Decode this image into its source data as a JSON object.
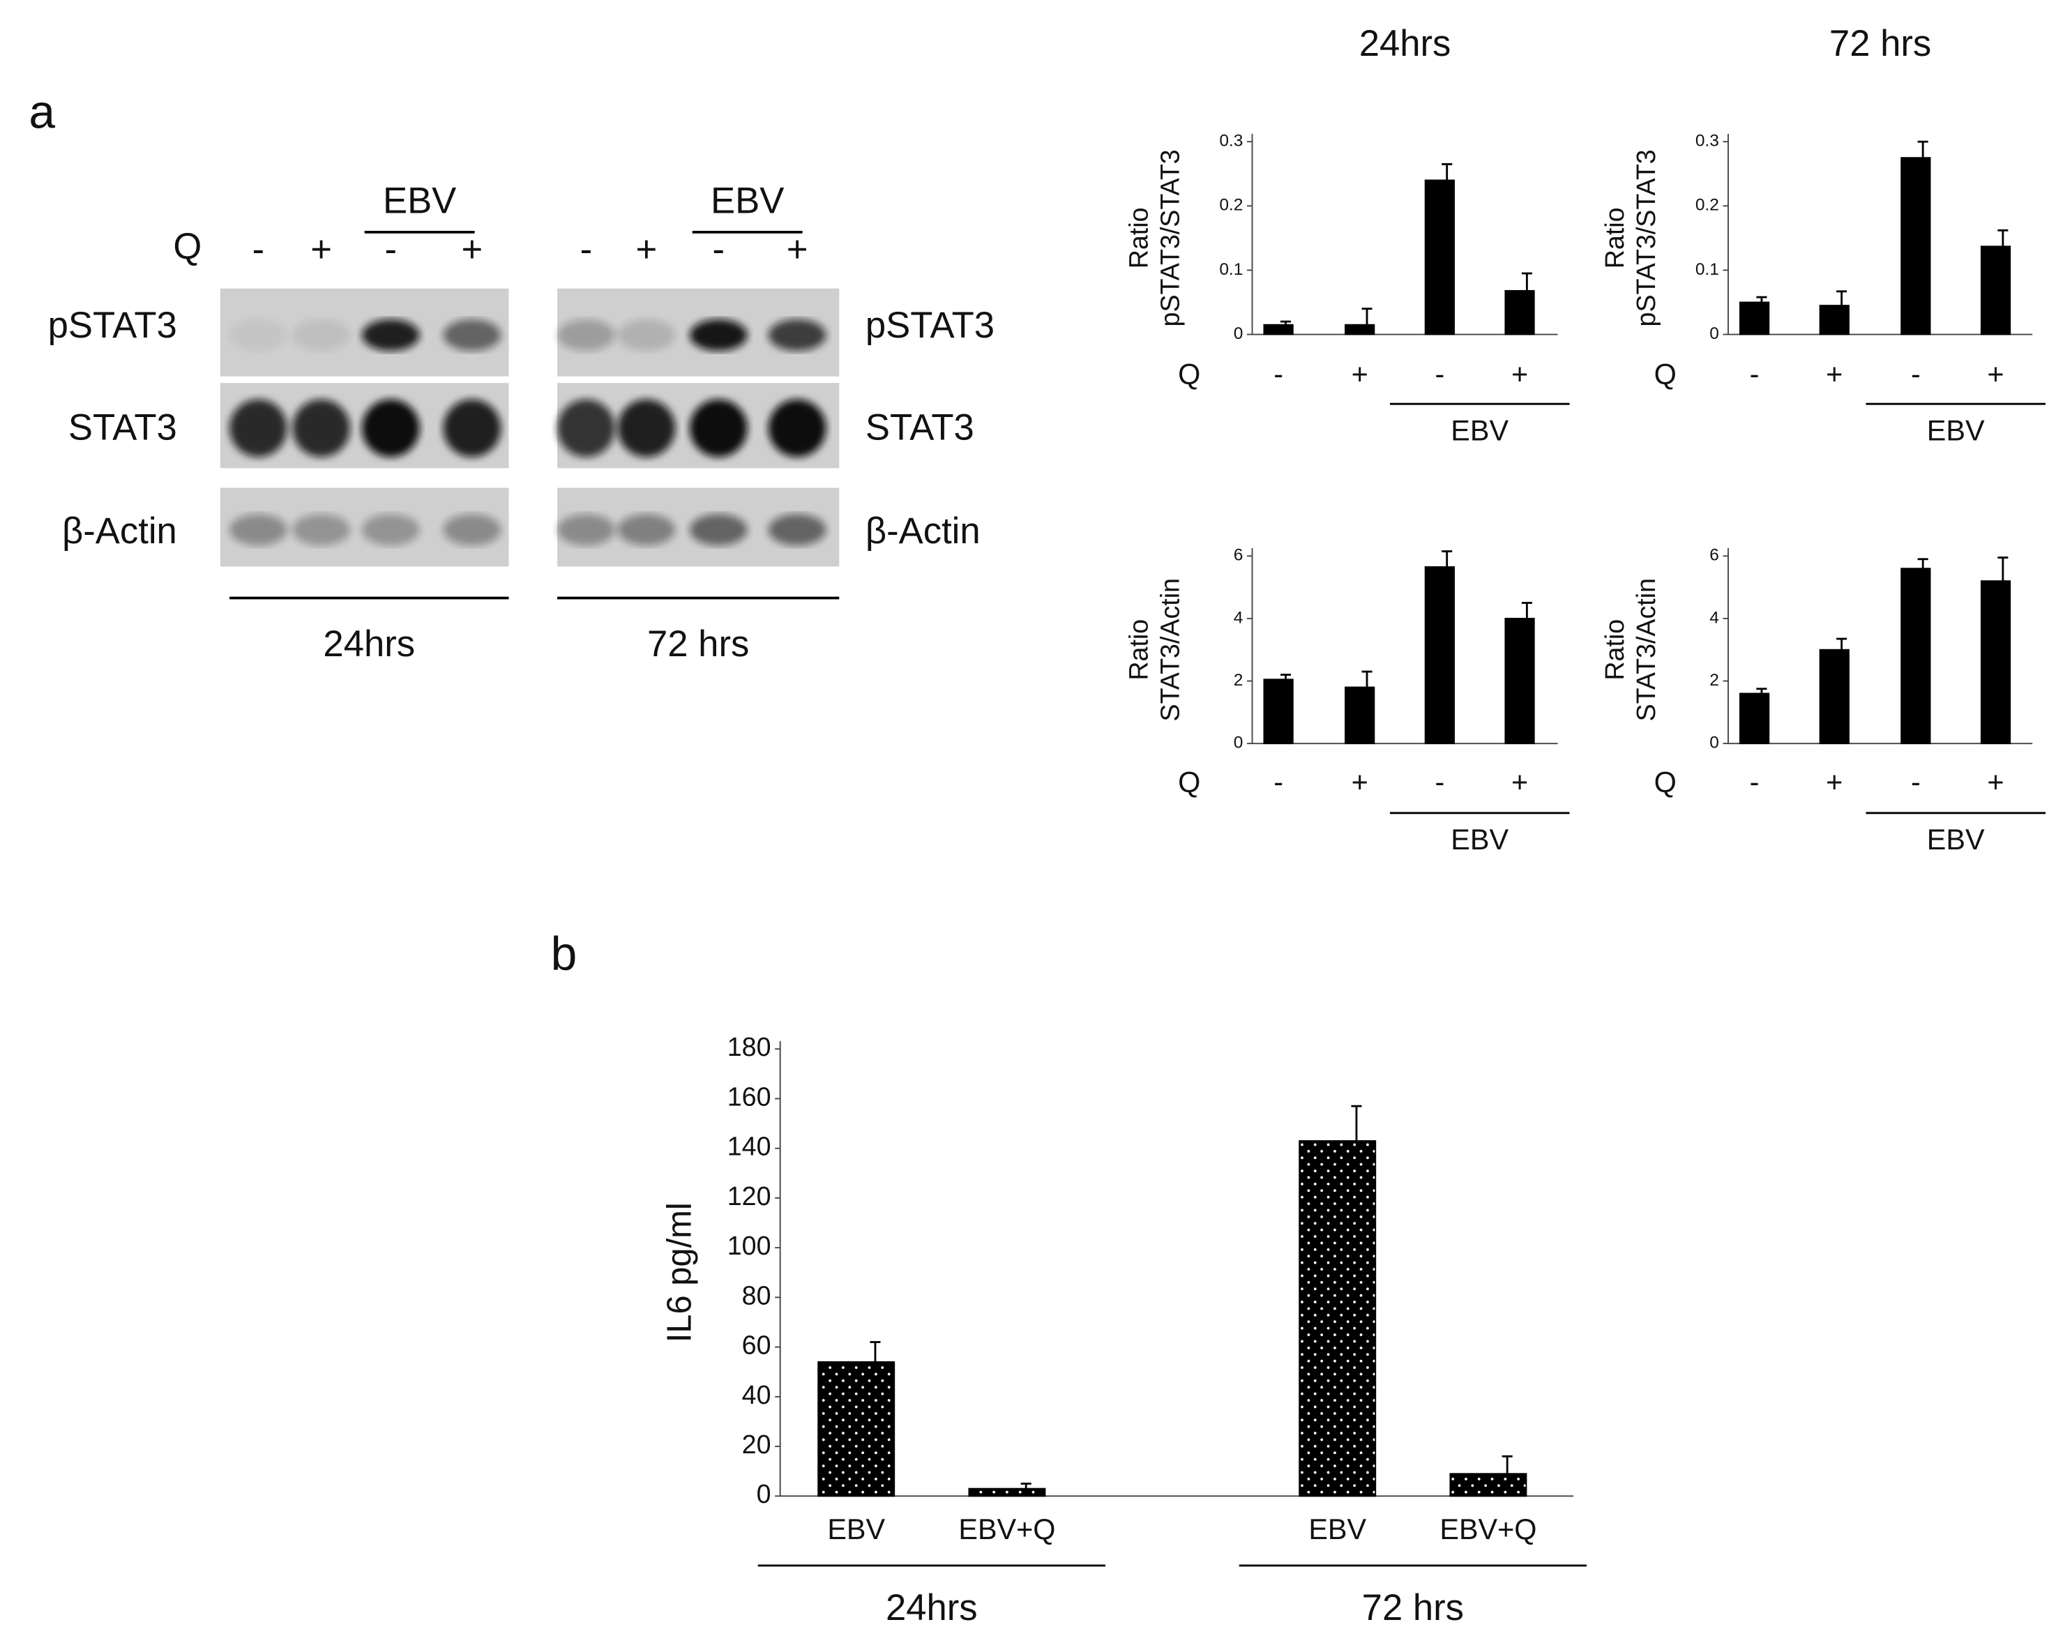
{
  "panel_a": {
    "panel_label": "a",
    "blot": {
      "row_label": "Q",
      "treatments": [
        "-",
        "+",
        "-",
        "+"
      ],
      "group_label": "EBV",
      "bands": [
        "pSTAT3",
        "STAT3",
        "β-Actin"
      ],
      "timepoints": [
        "24hrs",
        "72 hrs"
      ]
    }
  },
  "panel_b": {
    "panel_label": "b"
  },
  "chart_data": [
    {
      "type": "bar",
      "title": "24hrs",
      "ylabel": [
        "Ratio",
        "pSTAT3/STAT3"
      ],
      "row_label": "Q",
      "groups": [
        {
          "label": null,
          "categories": [
            "-",
            "+"
          ]
        },
        {
          "label": "EBV",
          "categories": [
            "-",
            "+"
          ]
        }
      ],
      "values": [
        0.015,
        0.015,
        0.24,
        0.068
      ],
      "errors": [
        0.005,
        0.025,
        0.025,
        0.027
      ],
      "color": "#000000",
      "ylim": [
        0,
        0.3
      ],
      "yticks": [
        0,
        0.1,
        0.2,
        0.3
      ],
      "grid": false
    },
    {
      "type": "bar",
      "title": "72 hrs",
      "ylabel": [
        "Ratio",
        "pSTAT3/STAT3"
      ],
      "row_label": "Q",
      "groups": [
        {
          "label": null,
          "categories": [
            "-",
            "+"
          ]
        },
        {
          "label": "EBV",
          "categories": [
            "-",
            "+"
          ]
        }
      ],
      "values": [
        0.05,
        0.045,
        0.275,
        0.137
      ],
      "errors": [
        0.008,
        0.022,
        0.025,
        0.025
      ],
      "color": "#000000",
      "ylim": [
        0,
        0.3
      ],
      "yticks": [
        0,
        0.1,
        0.2,
        0.3
      ],
      "grid": false
    },
    {
      "type": "bar",
      "ylabel": [
        "Ratio",
        "STAT3/Actin"
      ],
      "row_label": "Q",
      "groups": [
        {
          "label": null,
          "categories": [
            "-",
            "+"
          ]
        },
        {
          "label": "EBV",
          "categories": [
            "-",
            "+"
          ]
        }
      ],
      "values": [
        2.05,
        1.8,
        5.65,
        4.0
      ],
      "errors": [
        0.15,
        0.5,
        0.5,
        0.5
      ],
      "color": "#000000",
      "ylim": [
        0,
        6
      ],
      "yticks": [
        0,
        2,
        4,
        6
      ],
      "grid": false
    },
    {
      "type": "bar",
      "ylabel": [
        "Ratio",
        "STAT3/Actin"
      ],
      "row_label": "Q",
      "groups": [
        {
          "label": null,
          "categories": [
            "-",
            "+"
          ]
        },
        {
          "label": "EBV",
          "categories": [
            "-",
            "+"
          ]
        }
      ],
      "values": [
        1.6,
        3.0,
        5.6,
        5.2
      ],
      "errors": [
        0.15,
        0.35,
        0.3,
        0.75
      ],
      "color": "#000000",
      "ylim": [
        0,
        6
      ],
      "yticks": [
        0,
        2,
        4,
        6
      ],
      "grid": false
    },
    {
      "type": "bar",
      "ylabel": [
        "IL6 pg/ml"
      ],
      "groups": [
        {
          "label": "24hrs",
          "categories": [
            "EBV",
            "EBV+Q"
          ]
        },
        {
          "label": "72 hrs",
          "categories": [
            "EBV",
            "EBV+Q"
          ]
        }
      ],
      "values": [
        54,
        3,
        143,
        9
      ],
      "errors": [
        8,
        2,
        14,
        7
      ],
      "color": "#000000",
      "fill_pattern": "dots",
      "ylim": [
        0,
        180
      ],
      "yticks": [
        0,
        20,
        40,
        60,
        80,
        100,
        120,
        140,
        160,
        180
      ],
      "grid": false
    }
  ]
}
